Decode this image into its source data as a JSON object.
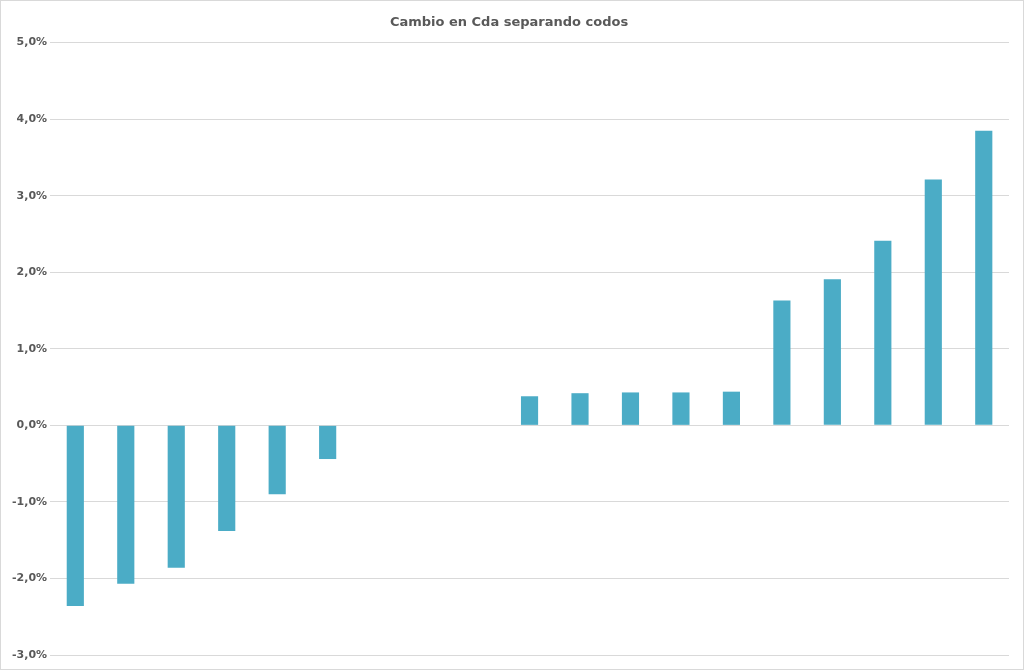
{
  "chart_data": {
    "type": "bar",
    "title": "Cambio en Cda separando codos",
    "categories": [
      null,
      null,
      null,
      null,
      null,
      null,
      null,
      null,
      null,
      null,
      null,
      null,
      null,
      null,
      null,
      null,
      null,
      null,
      null
    ],
    "values": [
      -2.36,
      -2.07,
      -1.86,
      -1.38,
      -0.9,
      -0.44,
      null,
      null,
      null,
      0.38,
      0.42,
      0.43,
      0.43,
      0.44,
      1.63,
      1.91,
      2.41,
      3.21,
      3.85
    ],
    "color": "#4bacc6",
    "ylim": [
      -3,
      5
    ],
    "yticks": [
      {
        "value": -3,
        "label": "-3,0%"
      },
      {
        "value": -2,
        "label": "-2,0%"
      },
      {
        "value": -1,
        "label": "-1,0%"
      },
      {
        "value": 0,
        "label": "0,0%"
      },
      {
        "value": 1,
        "label": "1,0%"
      },
      {
        "value": 2,
        "label": "2,0%"
      },
      {
        "value": 3,
        "label": "3,0%"
      },
      {
        "value": 4,
        "label": "4,0%"
      },
      {
        "value": 5,
        "label": "5,0%"
      }
    ],
    "grid": "y",
    "tick_labels": "y"
  }
}
